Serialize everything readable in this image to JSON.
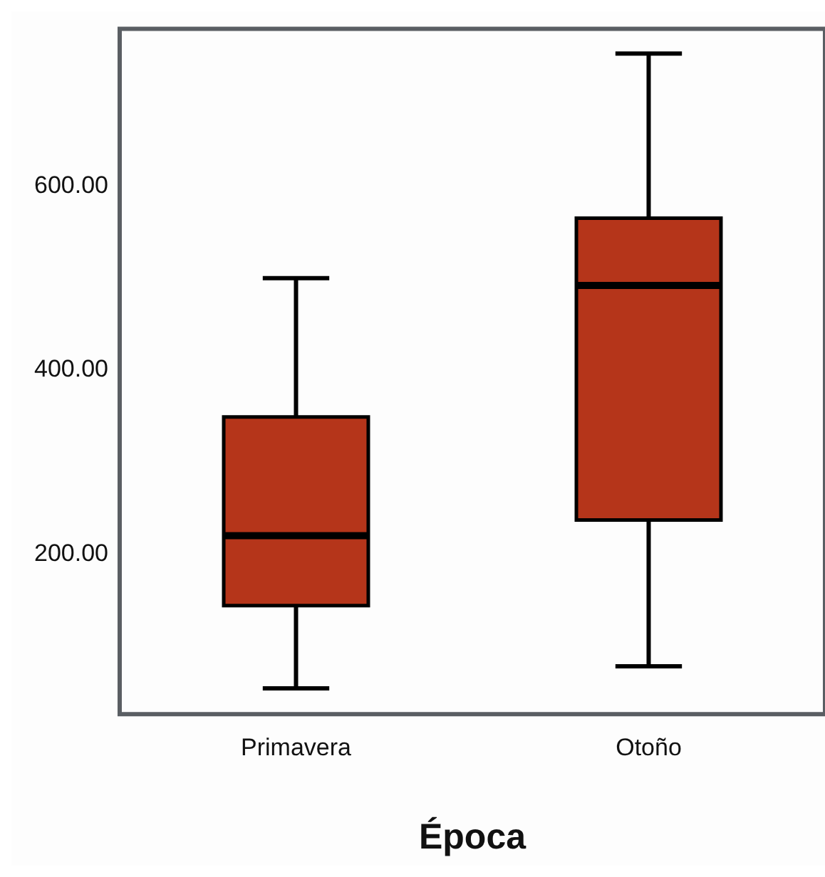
{
  "chart_data": {
    "type": "box",
    "xlabel": "Época",
    "categories": [
      "Primavera",
      "Otoño"
    ],
    "color": "#b5351a",
    "boxes": [
      {
        "low": 54,
        "q1": 144,
        "median": 220,
        "q3": 349,
        "high": 500
      },
      {
        "low": 78,
        "q1": 237,
        "median": 492,
        "q3": 565,
        "high": 744
      }
    ],
    "ylim": [
      26,
      771
    ],
    "yticks": [
      {
        "value": 200,
        "label": "200.00"
      },
      {
        "value": 400,
        "label": "400.00"
      },
      {
        "value": 600,
        "label": "600.00"
      }
    ],
    "grid": false,
    "legend": false
  }
}
